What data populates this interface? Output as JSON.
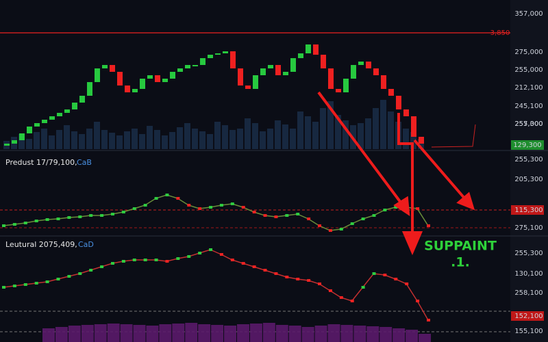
{
  "chart_data": {
    "type": "candlestick",
    "price": {
      "ylim": [
        0,
        218
      ],
      "open": [
        5,
        8,
        13,
        23,
        33,
        38,
        43,
        48,
        53,
        58,
        68,
        78,
        98,
        118,
        123,
        113,
        93,
        83,
        88,
        103,
        108,
        98,
        103,
        113,
        118,
        123,
        123,
        133,
        138,
        140,
        143,
        118,
        93,
        88,
        108,
        118,
        123,
        108,
        113,
        133,
        140,
        153,
        138,
        118,
        88,
        83,
        103,
        123,
        128,
        118,
        108,
        88,
        78,
        58,
        48,
        18
      ],
      "close": [
        8,
        13,
        23,
        33,
        38,
        43,
        48,
        53,
        58,
        68,
        78,
        98,
        118,
        123,
        113,
        93,
        83,
        88,
        103,
        108,
        98,
        103,
        113,
        118,
        123,
        123,
        133,
        138,
        140,
        143,
        118,
        93,
        88,
        108,
        118,
        123,
        108,
        113,
        133,
        140,
        153,
        138,
        118,
        88,
        83,
        103,
        123,
        128,
        118,
        108,
        88,
        78,
        58,
        48,
        18,
        8
      ],
      "volume": [
        12,
        18,
        22,
        15,
        25,
        30,
        20,
        28,
        35,
        26,
        22,
        30,
        40,
        28,
        24,
        20,
        26,
        30,
        22,
        34,
        28,
        20,
        25,
        32,
        38,
        30,
        26,
        22,
        40,
        35,
        28,
        30,
        45,
        38,
        26,
        30,
        42,
        36,
        30,
        55,
        48,
        40,
        60,
        70,
        50,
        42,
        35,
        38,
        45,
        60,
        72,
        55,
        40,
        30,
        25,
        15
      ],
      "axis_labels": [
        "357,000",
        "275,000",
        "255,000",
        "212,100",
        "245,100",
        "255,000",
        "257,300"
      ],
      "level_label": "3,850",
      "last_label": "129,300"
    },
    "osc1": {
      "title": "Predust 17/79,100,",
      "tag": "CaB",
      "ylim": [
        0,
        120
      ],
      "values": [
        15,
        17,
        19,
        22,
        24,
        25,
        27,
        28,
        30,
        30,
        32,
        35,
        40,
        45,
        55,
        60,
        55,
        45,
        40,
        42,
        45,
        47,
        42,
        35,
        30,
        28,
        30,
        32,
        25,
        15,
        8,
        10,
        18,
        25,
        30,
        38,
        42,
        42,
        40,
        15
      ],
      "axis_labels": [
        "255,300",
        "205,300",
        "115,300",
        "275,100"
      ]
    },
    "osc2": {
      "title": "Leutural 2075,409,",
      "tag": "CaD",
      "ylim": [
        0,
        150
      ],
      "values": [
        80,
        82,
        84,
        86,
        88,
        92,
        96,
        100,
        105,
        110,
        115,
        118,
        120,
        120,
        120,
        118,
        122,
        125,
        130,
        135,
        128,
        120,
        115,
        110,
        105,
        100,
        95,
        92,
        90,
        85,
        75,
        65,
        60,
        80,
        100,
        98,
        92,
        85,
        60,
        32
      ],
      "histogram": [
        20,
        22,
        24,
        25,
        26,
        27,
        26,
        25,
        24,
        26,
        27,
        28,
        26,
        25,
        24,
        26,
        27,
        28,
        25,
        24,
        22,
        24,
        26,
        25,
        24,
        23,
        22,
        20,
        18,
        12
      ],
      "axis_labels": [
        "255,300",
        "130,100",
        "258,100",
        "152,100",
        "155,100"
      ]
    },
    "annotation": {
      "line1": "SUPPAINT",
      "line2": ".1."
    }
  }
}
